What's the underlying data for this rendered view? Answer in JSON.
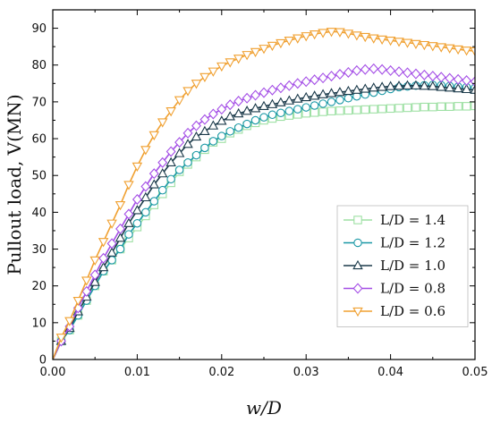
{
  "chart_data": {
    "type": "line",
    "title": "",
    "xlabel": "w/D",
    "ylabel": "Pullout load, V(MN)",
    "xlim": [
      0,
      0.05
    ],
    "ylim": [
      0,
      95
    ],
    "xticks": [
      0.0,
      0.01,
      0.02,
      0.03,
      0.04,
      0.05
    ],
    "xtick_labels": [
      "0.00",
      "0.01",
      "0.02",
      "0.03",
      "0.04",
      "0.05"
    ],
    "yticks": [
      0,
      10,
      20,
      30,
      40,
      50,
      60,
      70,
      80,
      90
    ],
    "ytick_labels": [
      "0",
      "10",
      "20",
      "30",
      "40",
      "50",
      "60",
      "70",
      "80",
      "90"
    ],
    "grid": false,
    "legend_position": "bottom-right",
    "series": [
      {
        "name": "L/D = 1.4",
        "color": "#9ee0a4",
        "marker": "square",
        "x": [
          0.0,
          0.001,
          0.002,
          0.003,
          0.004,
          0.005,
          0.006,
          0.007,
          0.008,
          0.009,
          0.01,
          0.011,
          0.012,
          0.013,
          0.014,
          0.015,
          0.016,
          0.017,
          0.018,
          0.019,
          0.02,
          0.021,
          0.022,
          0.023,
          0.024,
          0.025,
          0.026,
          0.027,
          0.028,
          0.029,
          0.03,
          0.031,
          0.032,
          0.033,
          0.034,
          0.035,
          0.036,
          0.037,
          0.038,
          0.039,
          0.04,
          0.041,
          0.042,
          0.043,
          0.044,
          0.045,
          0.046,
          0.047,
          0.048,
          0.049,
          0.05
        ],
        "y": [
          0,
          5,
          8,
          12,
          16,
          20,
          24,
          27,
          30,
          33,
          36,
          39,
          42,
          45,
          48,
          51,
          53,
          55,
          57,
          59,
          60,
          61.5,
          62.5,
          63.5,
          64.3,
          65,
          65.5,
          66,
          66.3,
          66.6,
          66.9,
          67.1,
          67.3,
          67.5,
          67.6,
          67.7,
          67.8,
          67.9,
          68,
          68.1,
          68.2,
          68.3,
          68.4,
          68.5,
          68.6,
          68.6,
          68.7,
          68.7,
          68.8,
          68.8,
          68.9
        ]
      },
      {
        "name": "L/D = 1.2",
        "color": "#1a98a6",
        "marker": "circle",
        "x": [
          0.0,
          0.001,
          0.002,
          0.003,
          0.004,
          0.005,
          0.006,
          0.007,
          0.008,
          0.009,
          0.01,
          0.011,
          0.012,
          0.013,
          0.014,
          0.015,
          0.016,
          0.017,
          0.018,
          0.019,
          0.02,
          0.021,
          0.022,
          0.023,
          0.024,
          0.025,
          0.026,
          0.027,
          0.028,
          0.029,
          0.03,
          0.031,
          0.032,
          0.033,
          0.034,
          0.035,
          0.036,
          0.037,
          0.038,
          0.039,
          0.04,
          0.041,
          0.042,
          0.043,
          0.044,
          0.045,
          0.046,
          0.047,
          0.048,
          0.049,
          0.05
        ],
        "y": [
          0,
          5,
          8,
          12,
          16,
          20,
          24,
          27,
          30,
          34,
          37,
          40,
          43,
          46,
          49,
          51.5,
          53.5,
          55.5,
          57.5,
          59.3,
          60.7,
          62,
          63,
          64,
          65,
          65.8,
          66.5,
          67,
          67.5,
          68,
          68.5,
          69,
          69.5,
          70,
          70.5,
          71,
          71.5,
          72,
          72.5,
          73,
          73.5,
          74,
          74.2,
          74.4,
          74.5,
          74.6,
          74.5,
          74.3,
          74.1,
          74.0,
          73.8
        ]
      },
      {
        "name": "L/D = 1.0",
        "color": "#1b3a4a",
        "marker": "triangle-up",
        "x": [
          0.0,
          0.001,
          0.002,
          0.003,
          0.004,
          0.005,
          0.006,
          0.007,
          0.008,
          0.009,
          0.01,
          0.011,
          0.012,
          0.013,
          0.014,
          0.015,
          0.016,
          0.017,
          0.018,
          0.019,
          0.02,
          0.021,
          0.022,
          0.023,
          0.024,
          0.025,
          0.026,
          0.027,
          0.028,
          0.029,
          0.03,
          0.031,
          0.032,
          0.033,
          0.034,
          0.035,
          0.036,
          0.037,
          0.038,
          0.039,
          0.04,
          0.041,
          0.042,
          0.043,
          0.044,
          0.045,
          0.046,
          0.047,
          0.048,
          0.049,
          0.05
        ],
        "y": [
          0,
          5,
          8.5,
          13,
          17,
          21,
          25,
          29,
          33,
          37,
          40.5,
          44,
          47.5,
          50.5,
          53.5,
          56,
          58.5,
          60.5,
          62,
          63.5,
          64.8,
          66,
          66.8,
          67.5,
          68.2,
          68.8,
          69.3,
          69.8,
          70.3,
          70.8,
          71.2,
          71.6,
          72,
          72.3,
          72.6,
          72.9,
          73.2,
          73.5,
          73.8,
          74,
          74.2,
          74.3,
          74.4,
          74.4,
          74.3,
          74.2,
          74.0,
          73.8,
          73.6,
          73.4,
          73.2
        ]
      },
      {
        "name": "L/D = 0.8",
        "color": "#a44ee6",
        "marker": "diamond",
        "x": [
          0.0,
          0.001,
          0.002,
          0.003,
          0.004,
          0.005,
          0.006,
          0.007,
          0.008,
          0.009,
          0.01,
          0.011,
          0.012,
          0.013,
          0.014,
          0.015,
          0.016,
          0.017,
          0.018,
          0.019,
          0.02,
          0.021,
          0.022,
          0.023,
          0.024,
          0.025,
          0.026,
          0.027,
          0.028,
          0.029,
          0.03,
          0.031,
          0.032,
          0.033,
          0.034,
          0.035,
          0.036,
          0.037,
          0.038,
          0.039,
          0.04,
          0.041,
          0.042,
          0.043,
          0.044,
          0.045,
          0.046,
          0.047,
          0.048,
          0.049,
          0.05
        ],
        "y": [
          0,
          5,
          9,
          14,
          18.5,
          23,
          27.5,
          31.5,
          35.5,
          39.5,
          43.5,
          47,
          50.5,
          53.5,
          56.5,
          59,
          61.5,
          63.5,
          65.2,
          66.7,
          68,
          69.2,
          70.2,
          71,
          71.8,
          72.5,
          73.2,
          73.8,
          74.4,
          75,
          75.5,
          76,
          76.5,
          77,
          77.5,
          78,
          78.5,
          78.8,
          79,
          78.8,
          78.5,
          78.2,
          77.9,
          77.6,
          77.3,
          77.0,
          76.7,
          76.4,
          76.1,
          75.8,
          75.5
        ]
      },
      {
        "name": "L/D = 0.6",
        "color": "#f0a030",
        "marker": "triangle-down",
        "x": [
          0.0,
          0.001,
          0.002,
          0.003,
          0.004,
          0.005,
          0.006,
          0.007,
          0.008,
          0.009,
          0.01,
          0.011,
          0.012,
          0.013,
          0.014,
          0.015,
          0.016,
          0.017,
          0.018,
          0.019,
          0.02,
          0.021,
          0.022,
          0.023,
          0.024,
          0.025,
          0.026,
          0.027,
          0.028,
          0.029,
          0.03,
          0.031,
          0.032,
          0.033,
          0.034,
          0.035,
          0.036,
          0.037,
          0.038,
          0.039,
          0.04,
          0.041,
          0.042,
          0.043,
          0.044,
          0.045,
          0.046,
          0.047,
          0.048,
          0.049,
          0.05
        ],
        "y": [
          0,
          6,
          10.5,
          16,
          21.5,
          27,
          32,
          37,
          42,
          47.5,
          52.5,
          57,
          61,
          64.5,
          67.5,
          70.5,
          73,
          75,
          76.8,
          78.3,
          79.7,
          80.8,
          81.8,
          82.8,
          83.6,
          84.5,
          85.3,
          86,
          86.7,
          87.3,
          87.9,
          88.4,
          88.8,
          89.1,
          89.0,
          88.6,
          88.1,
          87.7,
          87.3,
          87.0,
          86.7,
          86.4,
          86.1,
          85.8,
          85.5,
          85.2,
          84.9,
          84.6,
          84.3,
          84.0,
          83.8
        ]
      }
    ]
  }
}
